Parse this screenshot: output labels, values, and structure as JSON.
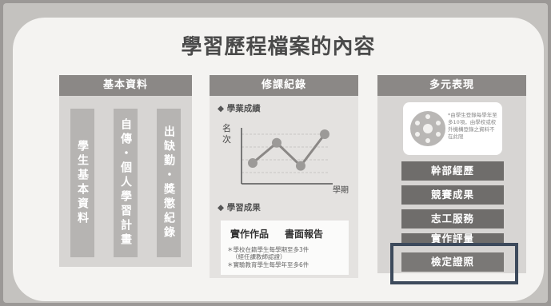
{
  "title": "學習歷程檔案的內容",
  "columns": {
    "basic": {
      "header": "基本資料",
      "items": [
        "學生基本資料",
        "自傳・個人學習計畫",
        "出缺勤・獎懲紀錄"
      ]
    },
    "courses": {
      "header": "修課紀錄",
      "section1": "◆ 學業成績",
      "ylabel": "名次",
      "xlabel": "學期",
      "section2": "◆ 學習成果",
      "card_title_1": "實作作品",
      "card_title_2": "書面報告",
      "bullets": [
        "＊學校在籍學生每學期至多3件",
        "（經任課教師認證）",
        "＊實驗教育學生每學年至多6件"
      ]
    },
    "diverse": {
      "header": "多元表現",
      "note": "*由學生登錄每學年至多10項，由學校或校外機構登錄之資料不在此限",
      "items": [
        "幹部經歷",
        "競賽成果",
        "志工服務",
        "實作評量",
        "檢定證照"
      ]
    }
  },
  "chart_data": {
    "type": "line",
    "x": [
      1,
      2,
      3,
      4
    ],
    "values": [
      3,
      1.6,
      3.2,
      1
    ],
    "title": "",
    "xlabel": "學期",
    "ylabel": "名次",
    "grid": true,
    "colors": {
      "line": "#8b8886",
      "marker": "#9c9a98"
    }
  }
}
